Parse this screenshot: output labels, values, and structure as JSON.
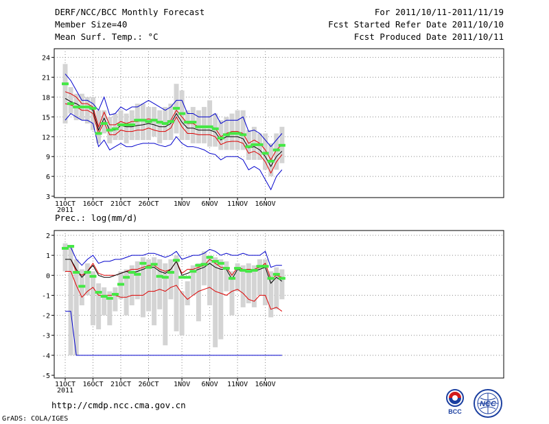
{
  "header": {
    "title": "DERF/NCC/BCC Monthly Forecast",
    "member_size": "Member Size=40",
    "variable": "Mean Surf. Temp.: °C",
    "period": "For 2011/10/11-2011/11/19",
    "started": "Fcst Started Refer Date 2011/10/10",
    "produced": "Fcst Produced Date 2011/10/11"
  },
  "panel2_label": "Prec.: log(mm/d)",
  "footer": {
    "url": "http://cmdp.ncc.cma.gov.cn",
    "credit": "GrADS: COLA/IGES",
    "logo_left": "BCC",
    "logo_right": "NCC"
  },
  "colors": {
    "envelope": "#0000cc",
    "spread": "#dd0000",
    "mean": "#000000",
    "box": "#d4d4d4",
    "marker": "#44e844",
    "grid": "#888888"
  },
  "x_ticks": [
    {
      "day": 0,
      "label": "11OCT",
      "sub": "2011"
    },
    {
      "day": 5,
      "label": "16OCT"
    },
    {
      "day": 10,
      "label": "21OCT"
    },
    {
      "day": 15,
      "label": "26OCT"
    },
    {
      "day": 21,
      "label": "1NOV"
    },
    {
      "day": 26,
      "label": "6NOV"
    },
    {
      "day": 31,
      "label": "11NOV"
    },
    {
      "day": 36,
      "label": "16NOV"
    }
  ],
  "chart_data": [
    {
      "type": "line",
      "title": "Mean Surf. Temp.: °C",
      "x_days": [
        0,
        1,
        2,
        3,
        4,
        5,
        6,
        7,
        8,
        9,
        10,
        11,
        12,
        13,
        14,
        15,
        16,
        17,
        18,
        19,
        20,
        21,
        22,
        23,
        24,
        25,
        26,
        27,
        28,
        29,
        30,
        31,
        32,
        33,
        34,
        35,
        36,
        37,
        38,
        39
      ],
      "ylim": [
        3,
        25
      ],
      "yticks": [
        3,
        6,
        9,
        12,
        15,
        18,
        21,
        24
      ],
      "series": [
        {
          "name": "max",
          "values": [
            21.5,
            20.5,
            19.0,
            17.5,
            17.5,
            17.0,
            16.0,
            18.0,
            15.3,
            15.5,
            16.5,
            16.0,
            16.5,
            16.5,
            17.0,
            17.5,
            17.0,
            16.5,
            16.0,
            16.5,
            17.5,
            17.5,
            15.5,
            15.5,
            15.0,
            15.0,
            15.0,
            15.5,
            14.0,
            14.5,
            14.5,
            14.5,
            15.0,
            12.8,
            13.0,
            12.5,
            11.5,
            10.5,
            11.5,
            12.5
          ]
        },
        {
          "name": "upper",
          "values": [
            18.8,
            18.5,
            18.0,
            17.0,
            17.0,
            16.5,
            13.5,
            15.7,
            13.8,
            13.8,
            14.3,
            14.0,
            14.3,
            14.3,
            14.5,
            14.7,
            14.5,
            14.3,
            14.0,
            14.5,
            16.0,
            15.0,
            14.0,
            14.0,
            13.5,
            13.5,
            13.5,
            13.3,
            12.0,
            12.5,
            12.8,
            12.8,
            12.5,
            11.0,
            11.5,
            11.0,
            10.0,
            8.5,
            10.0,
            10.8
          ]
        },
        {
          "name": "mean",
          "values": [
            17.8,
            17.3,
            17.0,
            16.5,
            16.5,
            16.0,
            13.0,
            14.8,
            13.0,
            13.0,
            13.7,
            13.5,
            13.5,
            13.7,
            13.8,
            14.0,
            13.8,
            13.5,
            13.5,
            14.0,
            15.5,
            14.2,
            13.3,
            13.3,
            13.0,
            13.0,
            13.0,
            12.7,
            11.5,
            12.0,
            12.0,
            12.0,
            11.7,
            10.3,
            10.5,
            10.0,
            9.0,
            7.5,
            9.0,
            9.8
          ]
        },
        {
          "name": "lower",
          "values": [
            17.0,
            16.8,
            16.5,
            16.0,
            16.0,
            15.5,
            12.5,
            14.2,
            12.3,
            12.3,
            13.0,
            12.8,
            12.8,
            13.0,
            13.0,
            13.3,
            13.0,
            12.8,
            12.8,
            13.3,
            15.0,
            13.5,
            12.5,
            12.5,
            12.3,
            12.3,
            12.3,
            12.0,
            10.8,
            11.2,
            11.3,
            11.3,
            11.0,
            9.5,
            9.8,
            9.3,
            8.2,
            6.5,
            8.2,
            9.3
          ]
        },
        {
          "name": "min",
          "values": [
            14.5,
            15.5,
            15.0,
            14.5,
            14.5,
            14.0,
            10.5,
            11.5,
            10.0,
            10.5,
            11.0,
            10.5,
            10.5,
            10.8,
            11.0,
            11.0,
            11.0,
            10.7,
            10.5,
            10.8,
            12.0,
            11.0,
            10.5,
            10.5,
            10.3,
            10.0,
            9.5,
            9.3,
            8.5,
            9.0,
            9.0,
            9.0,
            8.5,
            7.0,
            7.5,
            7.0,
            5.5,
            4.0,
            6.0,
            7.0
          ]
        }
      ],
      "markers": [
        20.0,
        17.0,
        16.5,
        16.5,
        16.5,
        16.3,
        12.5,
        14.0,
        13.0,
        13.2,
        13.8,
        13.8,
        13.8,
        14.5,
        14.5,
        14.3,
        14.5,
        14.2,
        14.0,
        14.3,
        16.3,
        15.5,
        14.2,
        14.2,
        13.5,
        13.5,
        13.5,
        13.2,
        11.8,
        12.3,
        12.5,
        12.5,
        12.3,
        10.5,
        10.8,
        10.8,
        9.5,
        8.3,
        10.0,
        10.7
      ],
      "boxes": [
        [
          14.0,
          23.0
        ],
        [
          15.5,
          19.5
        ],
        [
          14.5,
          18.5
        ],
        [
          14.5,
          18.5
        ],
        [
          14.0,
          18.0
        ],
        [
          13.0,
          18.0
        ],
        [
          11.0,
          16.0
        ],
        [
          12.5,
          16.0
        ],
        [
          11.0,
          15.0
        ],
        [
          11.5,
          15.5
        ],
        [
          11.5,
          16.0
        ],
        [
          11.0,
          15.5
        ],
        [
          11.5,
          16.0
        ],
        [
          11.5,
          17.0
        ],
        [
          11.5,
          17.0
        ],
        [
          11.5,
          16.5
        ],
        [
          12.0,
          16.5
        ],
        [
          11.0,
          16.0
        ],
        [
          11.5,
          16.5
        ],
        [
          11.5,
          17.0
        ],
        [
          12.5,
          20.0
        ],
        [
          11.5,
          19.0
        ],
        [
          11.5,
          16.0
        ],
        [
          11.0,
          16.5
        ],
        [
          11.0,
          16.0
        ],
        [
          11.0,
          16.5
        ],
        [
          10.5,
          17.5
        ],
        [
          10.5,
          15.5
        ],
        [
          10.0,
          14.5
        ],
        [
          10.0,
          15.0
        ],
        [
          10.0,
          15.5
        ],
        [
          10.0,
          16.0
        ],
        [
          10.0,
          16.0
        ],
        [
          8.5,
          13.0
        ],
        [
          8.5,
          13.5
        ],
        [
          8.5,
          12.5
        ],
        [
          7.0,
          12.5
        ],
        [
          6.0,
          11.0
        ],
        [
          7.0,
          12.5
        ],
        [
          8.0,
          13.5
        ]
      ]
    },
    {
      "type": "line",
      "title": "Prec.: log(mm/d)",
      "x_days": [
        0,
        1,
        2,
        3,
        4,
        5,
        6,
        7,
        8,
        9,
        10,
        11,
        12,
        13,
        14,
        15,
        16,
        17,
        18,
        19,
        20,
        21,
        22,
        23,
        24,
        25,
        26,
        27,
        28,
        29,
        30,
        31,
        32,
        33,
        34,
        35,
        36,
        37,
        38,
        39
      ],
      "ylim": [
        -5,
        2
      ],
      "yticks": [
        -5,
        -4,
        -3,
        -2,
        -1,
        0,
        1,
        2
      ],
      "series": [
        {
          "name": "max",
          "values": [
            1.4,
            1.4,
            0.8,
            0.5,
            0.8,
            1.0,
            0.6,
            0.7,
            0.7,
            0.8,
            0.8,
            0.9,
            1.0,
            1.0,
            1.0,
            1.1,
            1.1,
            1.0,
            0.9,
            1.0,
            1.2,
            0.8,
            0.9,
            1.0,
            1.0,
            1.1,
            1.3,
            1.2,
            1.0,
            1.1,
            1.0,
            1.0,
            1.1,
            1.0,
            1.0,
            1.0,
            1.2,
            0.4,
            0.5,
            0.5
          ]
        },
        {
          "name": "upper",
          "values": [
            0.8,
            0.8,
            0.2,
            0.0,
            0.2,
            0.6,
            0.1,
            0.0,
            0.0,
            0.0,
            0.1,
            0.2,
            0.3,
            0.3,
            0.4,
            0.5,
            0.5,
            0.3,
            0.2,
            0.3,
            0.7,
            0.1,
            0.3,
            0.3,
            0.4,
            0.5,
            0.8,
            0.6,
            0.4,
            0.4,
            0.0,
            0.4,
            0.3,
            0.3,
            0.3,
            0.4,
            0.6,
            -0.2,
            0.0,
            -0.1
          ]
        },
        {
          "name": "mean",
          "values": [
            0.8,
            0.8,
            0.3,
            -0.1,
            0.2,
            0.5,
            0.0,
            -0.1,
            -0.1,
            0.0,
            0.1,
            0.2,
            0.1,
            0.2,
            0.3,
            0.4,
            0.4,
            0.2,
            0.1,
            0.3,
            0.7,
            0.0,
            0.1,
            0.2,
            0.3,
            0.4,
            0.6,
            0.4,
            0.3,
            0.3,
            -0.2,
            0.3,
            0.2,
            0.2,
            0.2,
            0.3,
            0.4,
            -0.4,
            -0.1,
            -0.3
          ]
        },
        {
          "name": "lower",
          "values": [
            0.2,
            0.2,
            -0.5,
            -1.1,
            -0.8,
            -0.6,
            -1.0,
            -1.0,
            -1.0,
            -1.0,
            -1.1,
            -1.1,
            -1.0,
            -1.0,
            -1.0,
            -0.8,
            -0.8,
            -0.7,
            -0.8,
            -0.6,
            -0.5,
            -0.9,
            -1.2,
            -1.0,
            -0.8,
            -0.7,
            -0.6,
            -0.8,
            -0.9,
            -1.0,
            -0.8,
            -0.7,
            -0.9,
            -1.2,
            -1.3,
            -1.0,
            -1.0,
            -1.7,
            -1.6,
            -1.8
          ]
        },
        {
          "name": "min",
          "values": [
            -1.8,
            -1.8,
            -4.0,
            -4.0,
            -4.0,
            -4.0,
            -4.0,
            -4.0,
            -4.0,
            -4.0,
            -4.0,
            -4.0,
            -4.0,
            -4.0,
            -4.0,
            -4.0,
            -4.0,
            -4.0,
            -4.0,
            -4.0,
            -4.0,
            -4.0,
            -4.0,
            -4.0,
            -4.0,
            -4.0,
            -4.0,
            -4.0,
            -4.0,
            -4.0,
            -4.0,
            -4.0,
            -4.0,
            -4.0,
            -4.0,
            -4.0,
            -4.0,
            -4.0,
            -4.0,
            -4.0
          ]
        }
      ],
      "markers": [
        1.35,
        1.45,
        0.15,
        -0.55,
        0.15,
        -0.05,
        -0.85,
        -1.05,
        -1.15,
        -0.95,
        -0.45,
        -0.1,
        0.15,
        0.05,
        0.6,
        0.4,
        0.55,
        -0.05,
        -0.1,
        0.15,
        0.75,
        -0.1,
        -0.1,
        0.2,
        0.5,
        0.55,
        0.9,
        0.7,
        0.6,
        0.35,
        -0.15,
        0.35,
        0.25,
        0.2,
        0.25,
        0.45,
        0.45,
        -0.15,
        0.05,
        -0.15
      ],
      "boxes": [
        [
          0.2,
          1.6
        ],
        [
          -4.0,
          1.4
        ],
        [
          -4.0,
          0.8
        ],
        [
          -1.5,
          0.3
        ],
        [
          -1.0,
          0.6
        ],
        [
          -2.5,
          0.2
        ],
        [
          -2.7,
          -0.4
        ],
        [
          -2.0,
          -0.6
        ],
        [
          -2.5,
          -0.8
        ],
        [
          -1.8,
          -0.6
        ],
        [
          -1.2,
          0.2
        ],
        [
          -2.0,
          0.3
        ],
        [
          -1.5,
          0.5
        ],
        [
          -1.2,
          0.7
        ],
        [
          -2.1,
          0.9
        ],
        [
          -1.8,
          0.8
        ],
        [
          -2.5,
          0.9
        ],
        [
          -1.7,
          0.8
        ],
        [
          -3.5,
          0.6
        ],
        [
          -1.2,
          0.8
        ],
        [
          -2.8,
          1.0
        ],
        [
          -3.0,
          -0.8
        ],
        [
          -1.5,
          -0.3
        ],
        [
          -1.0,
          0.5
        ],
        [
          -2.3,
          0.6
        ],
        [
          -0.5,
          1.2
        ],
        [
          -1.5,
          1.0
        ],
        [
          -3.6,
          0.9
        ],
        [
          -3.2,
          0.8
        ],
        [
          -0.8,
          0.7
        ],
        [
          -2.0,
          0.2
        ],
        [
          -0.8,
          0.6
        ],
        [
          -1.6,
          0.5
        ],
        [
          -1.4,
          0.6
        ],
        [
          -1.6,
          0.5
        ],
        [
          -1.0,
          0.8
        ],
        [
          -1.5,
          0.8
        ],
        [
          -2.1,
          0.2
        ],
        [
          -1.7,
          0.4
        ],
        [
          -1.2,
          0.3
        ]
      ]
    }
  ]
}
